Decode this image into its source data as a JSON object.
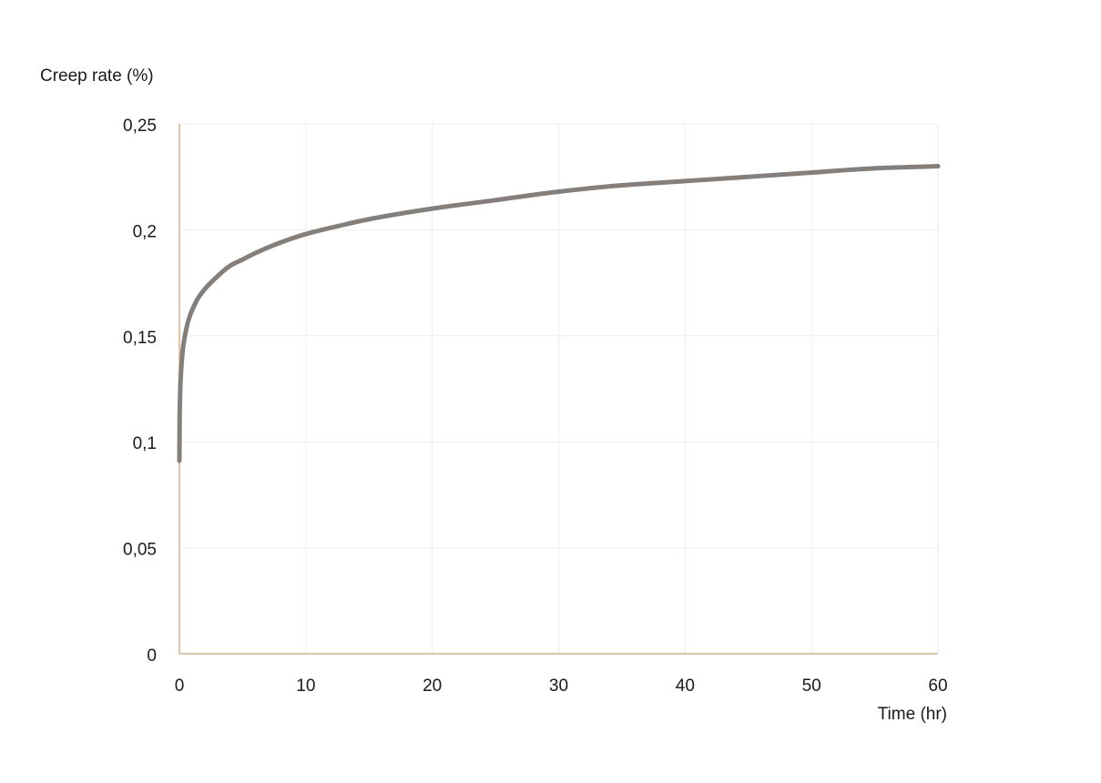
{
  "chart_data": {
    "type": "line",
    "title": "",
    "xlabel": "Time (hr)",
    "ylabel": "Creep rate (%)",
    "xlim": [
      0,
      60
    ],
    "ylim": [
      0,
      0.25
    ],
    "x_ticks": [
      0,
      10,
      20,
      30,
      40,
      50,
      60
    ],
    "x_tick_labels": [
      "0",
      "10",
      "20",
      "30",
      "40",
      "50",
      "60"
    ],
    "y_ticks": [
      0,
      0.05,
      0.1,
      0.15,
      0.2,
      0.25
    ],
    "y_tick_labels": [
      "0",
      "0,05",
      "0,1",
      "0,15",
      "0,2",
      "0,25"
    ],
    "grid": true,
    "legend": "none",
    "series": [
      {
        "x": [
          0,
          0.02,
          0.05,
          0.1,
          0.2,
          0.3,
          0.5,
          0.75,
          1,
          1.5,
          2,
          3,
          4,
          5,
          6,
          8,
          10,
          12,
          15,
          20,
          25,
          30,
          35,
          40,
          45,
          50,
          55,
          60
        ],
        "values": [
          0.091,
          0.112,
          0.121,
          0.13,
          0.139,
          0.145,
          0.152,
          0.158,
          0.162,
          0.168,
          0.172,
          0.178,
          0.183,
          0.186,
          0.189,
          0.194,
          0.198,
          0.201,
          0.205,
          0.21,
          0.214,
          0.218,
          0.221,
          0.223,
          0.225,
          0.227,
          0.229,
          0.23
        ]
      }
    ],
    "colors": {
      "line": "#857f7b",
      "axis": "#d4b28f",
      "grid": "#eeeeee"
    }
  }
}
